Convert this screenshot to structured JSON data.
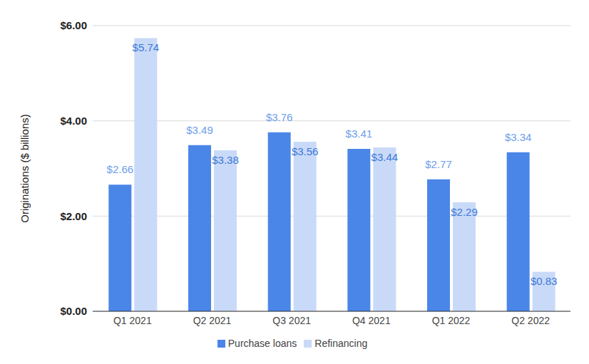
{
  "chart_data": {
    "type": "bar",
    "y_label": "Originations ($ billions)",
    "categories": [
      "Q1 2021",
      "Q2 2021",
      "Q3 2021",
      "Q4 2021",
      "Q1 2022",
      "Q2 2022"
    ],
    "series": [
      {
        "name": "Purchase loans",
        "color": "#4a86e8",
        "values": [
          2.66,
          3.49,
          3.76,
          3.41,
          2.77,
          3.34
        ],
        "value_labels": [
          "$2.66",
          "$3.49",
          "$3.76",
          "$3.41",
          "$2.77",
          "$3.34"
        ]
      },
      {
        "name": "Refinancing",
        "color": "#c9daf8",
        "values": [
          5.74,
          3.38,
          3.56,
          3.44,
          2.29,
          0.83
        ],
        "value_labels": [
          "$5.74",
          "$3.38",
          "$3.56",
          "$3.44",
          "$2.29",
          "$0.83"
        ]
      }
    ],
    "ylim": [
      0,
      6
    ],
    "yticks": [
      {
        "value": 0,
        "label": "$0.00"
      },
      {
        "value": 2,
        "label": "$2.00"
      },
      {
        "value": 4,
        "label": "$4.00"
      },
      {
        "value": 6,
        "label": "$6.00"
      }
    ],
    "grid": true,
    "legend": "bottom",
    "data_labels": true
  }
}
